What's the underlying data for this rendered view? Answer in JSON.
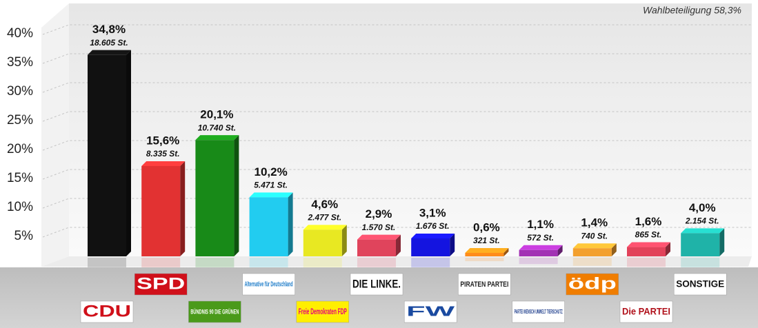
{
  "chart_data": {
    "type": "bar3d",
    "title": "Wahlbeteiligung 58,3%",
    "categories": [
      "CDU",
      "SPD",
      "BÜNDNIS 90 DIE GRÜNEN",
      "Alternative für Deutschland",
      "Freie Demokraten FDP",
      "DIE LINKE.",
      "FW",
      "PIRATEN PARTEI",
      "PARTEI MENSCH UMWELT TIERSCHUTZ",
      "ödp",
      "Die PARTEI",
      "SONSTIGE"
    ],
    "values": [
      34.8,
      15.6,
      20.1,
      10.2,
      4.6,
      2.9,
      3.1,
      0.6,
      1.1,
      1.4,
      1.6,
      4.0
    ],
    "value_labels": [
      "34,8%",
      "15,6%",
      "20,1%",
      "10,2%",
      "4,6%",
      "2,9%",
      "3,1%",
      "0,6%",
      "1,1%",
      "1,4%",
      "1,6%",
      "4,0%"
    ],
    "vote_labels": [
      "18.605 St.",
      "8.335 St.",
      "10.740 St.",
      "5.471 St.",
      "2.477 St.",
      "1.570 St.",
      "1.676 St.",
      "321 St.",
      "572 St.",
      "740 St.",
      "865 St.",
      "2.154 St."
    ],
    "colors": [
      "#111111",
      "#e23232",
      "#188a18",
      "#22ccf0",
      "#e8e822",
      "#e0445c",
      "#1414e0",
      "#ff8c1a",
      "#a232b4",
      "#f3a02e",
      "#e2425a",
      "#1fb3a8"
    ],
    "ylim": [
      0,
      45
    ],
    "yticks": [
      {
        "value": 5,
        "label": "5%"
      },
      {
        "value": 10,
        "label": "10%"
      },
      {
        "value": 15,
        "label": "15%"
      },
      {
        "value": 20,
        "label": "20%"
      },
      {
        "value": 25,
        "label": "25%"
      },
      {
        "value": 30,
        "label": "30%"
      },
      {
        "value": 35,
        "label": "35%"
      },
      {
        "value": 40,
        "label": "40%"
      }
    ],
    "grid": true
  }
}
